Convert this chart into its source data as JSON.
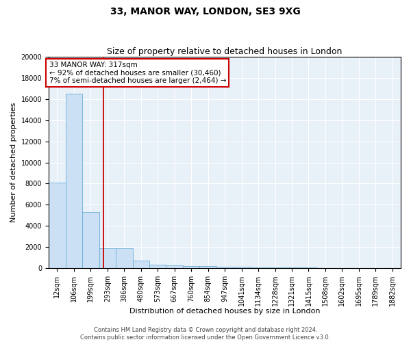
{
  "title1": "33, MANOR WAY, LONDON, SE3 9XG",
  "title2": "Size of property relative to detached houses in London",
  "xlabel": "Distribution of detached houses by size in London",
  "ylabel": "Number of detached properties",
  "bar_edges": [
    12,
    106,
    199,
    293,
    386,
    480,
    573,
    667,
    760,
    854,
    947,
    1041,
    1134,
    1228,
    1321,
    1415,
    1508,
    1602,
    1695,
    1789,
    1882
  ],
  "bar_heights": [
    8100,
    16500,
    5300,
    1900,
    1900,
    700,
    350,
    250,
    200,
    200,
    150,
    150,
    80,
    60,
    50,
    40,
    30,
    25,
    20,
    15,
    10
  ],
  "bar_color": "#cce0f5",
  "bar_edge_color": "#6aafd6",
  "bg_color": "#e8f0f8",
  "grid_color": "#ffffff",
  "red_line_x": 317,
  "red_line_color": "#cc0000",
  "annotation_line1": "33 MANOR WAY: 317sqm",
  "annotation_line2": "← 92% of detached houses are smaller (30,460)",
  "annotation_line3": "7% of semi-detached houses are larger (2,464) →",
  "annotation_box_color": "#ffffff",
  "annotation_box_edge": "#cc0000",
  "ylim": [
    0,
    20000
  ],
  "yticks": [
    0,
    2000,
    4000,
    6000,
    8000,
    10000,
    12000,
    14000,
    16000,
    18000,
    20000
  ],
  "footnote": "Contains HM Land Registry data © Crown copyright and database right 2024.\nContains public sector information licensed under the Open Government Licence v3.0.",
  "title1_fontsize": 10,
  "title2_fontsize": 9,
  "xlabel_fontsize": 8,
  "ylabel_fontsize": 8,
  "tick_fontsize": 7,
  "annotation_fontsize": 7.5
}
